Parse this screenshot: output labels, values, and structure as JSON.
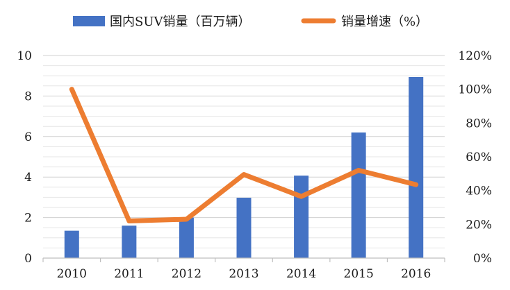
{
  "chart_data": {
    "type": "bar",
    "categories": [
      "2010",
      "2011",
      "2012",
      "2013",
      "2014",
      "2015",
      "2016"
    ],
    "series": [
      {
        "name": "国内SUV销量（百万辆）",
        "type": "bar",
        "axis": "left",
        "color": "#4472C4",
        "values": [
          1.35,
          1.6,
          2.0,
          2.98,
          4.07,
          6.2,
          8.94
        ]
      },
      {
        "name": "销量增速（%）",
        "type": "line",
        "axis": "right",
        "color": "#ED7D31",
        "values": [
          100,
          22,
          23,
          49.5,
          36.5,
          52,
          43.5
        ]
      }
    ],
    "left_axis": {
      "ylim": [
        0,
        10
      ],
      "ticks": [
        "0",
        "2",
        "4",
        "6",
        "8",
        "10"
      ]
    },
    "right_axis": {
      "ylim": [
        0,
        120
      ],
      "ticks": [
        "0%",
        "20%",
        "40%",
        "60%",
        "80%",
        "100%",
        "120%"
      ]
    },
    "grid": true,
    "legend_position": "top"
  }
}
